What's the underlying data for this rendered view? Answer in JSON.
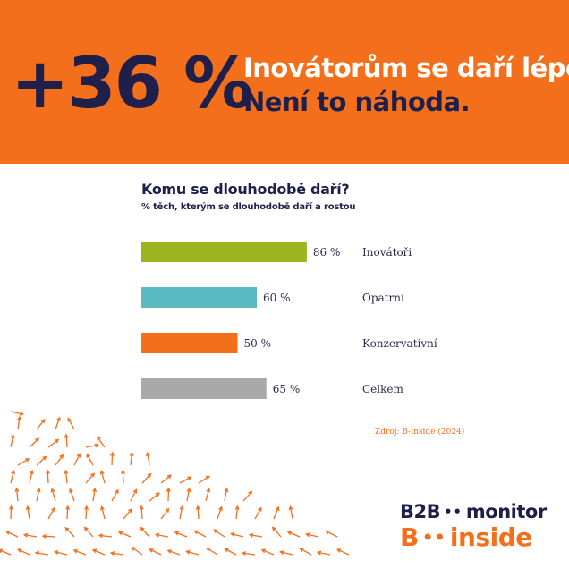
{
  "banner": {
    "big_number": "+36 %",
    "headline_line1": "Inovátorům se daří lépe.",
    "headline_line2": "Není to náhoda."
  },
  "chart_data": {
    "type": "bar",
    "orientation": "horizontal",
    "title": "Komu se dlouhodobě daří?",
    "subtitle": "% těch, kterým se dlouhodobě daří a rostou",
    "categories": [
      "Inovátoři",
      "Opatrní",
      "Konzervativní",
      "Celkem"
    ],
    "values": [
      86,
      60,
      50,
      65
    ],
    "value_labels": [
      "86 %",
      "60 %",
      "50 %",
      "65 %"
    ],
    "colors": [
      "#9cb51e",
      "#5ab9c1",
      "#f46f1b",
      "#a9a9a9"
    ],
    "grid": false,
    "legend": "none",
    "source": "Zdroj: B-inside (2024)"
  },
  "brand": {
    "logo1_left": "B2B",
    "logo1_dots": "••",
    "logo1_right": "monitor",
    "logo2_left": "B",
    "logo2_dots": "••",
    "logo2_right": "inside",
    "dark": "#1e1f4b",
    "orange": "#f46f1b"
  },
  "decoration": {
    "icon": "scattered-arrows-icon"
  }
}
